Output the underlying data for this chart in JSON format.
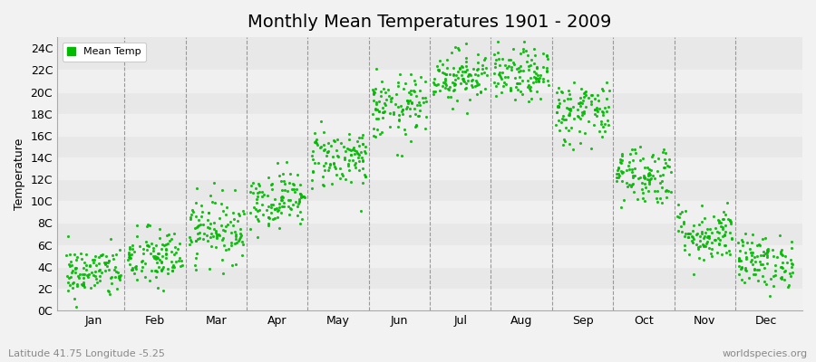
{
  "title": "Monthly Mean Temperatures 1901 - 2009",
  "ylabel": "Temperature",
  "subtitle": "Latitude 41.75 Longitude -5.25",
  "watermark": "worldspecies.org",
  "dot_color": "#00bb00",
  "legend_label": "Mean Temp",
  "ylim": [
    0,
    25
  ],
  "ytick_labels": [
    "0C",
    "2C",
    "4C",
    "6C",
    "8C",
    "10C",
    "12C",
    "14C",
    "16C",
    "18C",
    "20C",
    "22C",
    "24C"
  ],
  "ytick_values": [
    0,
    2,
    4,
    6,
    8,
    10,
    12,
    14,
    16,
    18,
    20,
    22,
    24
  ],
  "month_names": [
    "Jan",
    "Feb",
    "Mar",
    "Apr",
    "May",
    "Jun",
    "Jul",
    "Aug",
    "Sep",
    "Oct",
    "Nov",
    "Dec"
  ],
  "monthly_means": [
    3.5,
    4.8,
    7.5,
    10.2,
    14.0,
    18.5,
    21.5,
    21.5,
    18.2,
    12.5,
    7.0,
    4.5
  ],
  "monthly_stds": [
    1.2,
    1.4,
    1.5,
    1.3,
    1.4,
    1.5,
    1.2,
    1.2,
    1.5,
    1.4,
    1.3,
    1.2
  ],
  "n_years": 109,
  "seed": 42,
  "bg_color": "#f2f2f2",
  "plot_bg_color": "#e8e8e8",
  "stripe_color_light": "#f0f0f0",
  "stripe_color_dark": "#e0e0e0",
  "grid_color": "#999999",
  "title_fontsize": 14,
  "axis_label_fontsize": 9,
  "tick_fontsize": 9,
  "dot_size": 5,
  "dot_alpha": 0.9
}
